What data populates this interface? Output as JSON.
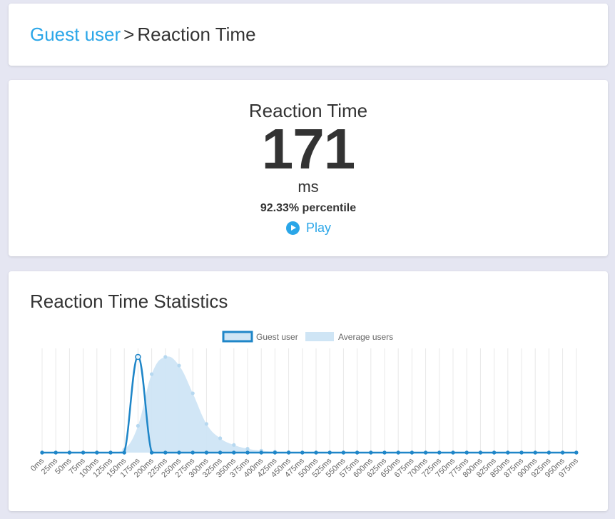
{
  "breadcrumb": {
    "link": "Guest user",
    "separator": ">",
    "current": "Reaction Time"
  },
  "score": {
    "title": "Reaction Time",
    "value": "171",
    "unit": "ms",
    "percentile": "92.33% percentile",
    "play_label": "Play"
  },
  "stats": {
    "title": "Reaction Time Statistics"
  },
  "colors": {
    "accent": "#2aa6e8",
    "guest_line": "#1f86c8",
    "average_fill": "#cfe5f5",
    "average_point": "#b6d8f0",
    "background": "#e5e6f2"
  },
  "chart_data": {
    "type": "area",
    "x": [
      "0ms",
      "25ms",
      "50ms",
      "75ms",
      "100ms",
      "125ms",
      "150ms",
      "175ms",
      "200ms",
      "225ms",
      "250ms",
      "275ms",
      "300ms",
      "325ms",
      "350ms",
      "375ms",
      "400ms",
      "425ms",
      "450ms",
      "475ms",
      "500ms",
      "525ms",
      "550ms",
      "575ms",
      "600ms",
      "625ms",
      "650ms",
      "675ms",
      "700ms",
      "725ms",
      "750ms",
      "775ms",
      "800ms",
      "825ms",
      "850ms",
      "875ms",
      "900ms",
      "925ms",
      "950ms",
      "975ms"
    ],
    "series": [
      {
        "name": "Guest user",
        "kind": "line",
        "values": [
          0,
          0,
          0,
          0,
          0,
          0,
          0,
          100,
          0,
          0,
          0,
          0,
          0,
          0,
          0,
          0,
          0,
          0,
          0,
          0,
          0,
          0,
          0,
          0,
          0,
          0,
          0,
          0,
          0,
          0,
          0,
          0,
          0,
          0,
          0,
          0,
          0,
          0,
          0,
          0
        ]
      },
      {
        "name": "Average users",
        "kind": "area",
        "values": [
          0,
          0,
          0,
          0,
          0,
          0,
          3,
          28,
          82,
          100,
          91,
          62,
          30,
          15,
          8,
          4,
          2,
          1,
          0.5,
          0,
          0,
          0,
          0,
          0,
          0,
          0,
          0,
          0,
          0,
          0,
          0,
          0,
          0,
          0,
          0,
          0,
          0,
          0,
          0,
          0
        ]
      }
    ],
    "ylim": [
      0,
      100
    ],
    "legend_position": "top",
    "grid": "vertical"
  }
}
